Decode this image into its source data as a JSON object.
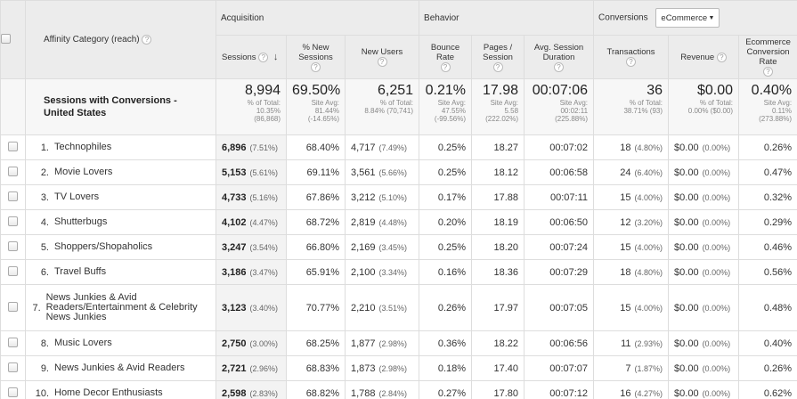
{
  "groups": {
    "acquisition": "Acquisition",
    "behavior": "Behavior",
    "conversions_label": "Conversions",
    "conversions_select": "eCommerce"
  },
  "columns": {
    "category": "Affinity Category (reach)",
    "sessions": "Sessions",
    "new_sessions": "% New Sessions",
    "new_users": "New Users",
    "bounce": "Bounce Rate",
    "pages": "Pages / Session",
    "duration": "Avg. Session Duration",
    "transactions": "Transactions",
    "revenue": "Revenue",
    "conv_rate": "Ecommerce Conversion Rate"
  },
  "totals": {
    "label": "Sessions with Conversions - United States",
    "sessions": {
      "value": "8,994",
      "l1": "% of Total:",
      "l2": "10.35%",
      "l3": "(86,868)"
    },
    "new_sessions": {
      "value": "69.50%",
      "l1": "Site Avg:",
      "l2": "81.44%",
      "l3": "(-14.65%)"
    },
    "new_users": {
      "value": "6,251",
      "l1": "% of Total:",
      "l2": "8.84% (70,741)",
      "l3": ""
    },
    "bounce": {
      "value": "0.21%",
      "l1": "Site Avg:",
      "l2": "47.55%",
      "l3": "(-99.56%)"
    },
    "pages": {
      "value": "17.98",
      "l1": "Site Avg:",
      "l2": "5.58",
      "l3": "(222.02%)"
    },
    "duration": {
      "value": "00:07:06",
      "l1": "Site Avg:",
      "l2": "00:02:11",
      "l3": "(225.88%)"
    },
    "transactions": {
      "value": "36",
      "l1": "% of Total:",
      "l2": "38.71% (93)",
      "l3": ""
    },
    "revenue": {
      "value": "$0.00",
      "l1": "% of Total:",
      "l2": "0.00% ($0.00)",
      "l3": ""
    },
    "conv_rate": {
      "value": "0.40%",
      "l1": "Site Avg:",
      "l2": "0.11%",
      "l3": "(273.88%)"
    }
  },
  "rows": [
    {
      "idx": "1.",
      "name": "Technophiles",
      "sessions": "6,896",
      "sessions_pct": "(7.51%)",
      "new_sessions": "68.40%",
      "new_users": "4,717",
      "new_users_pct": "(7.49%)",
      "bounce": "0.25%",
      "pages": "18.27",
      "duration": "00:07:02",
      "transactions": "18",
      "transactions_pct": "(4.80%)",
      "revenue": "$0.00",
      "revenue_pct": "(0.00%)",
      "conv_rate": "0.26%"
    },
    {
      "idx": "2.",
      "name": "Movie Lovers",
      "sessions": "5,153",
      "sessions_pct": "(5.61%)",
      "new_sessions": "69.11%",
      "new_users": "3,561",
      "new_users_pct": "(5.66%)",
      "bounce": "0.25%",
      "pages": "18.12",
      "duration": "00:06:58",
      "transactions": "24",
      "transactions_pct": "(6.40%)",
      "revenue": "$0.00",
      "revenue_pct": "(0.00%)",
      "conv_rate": "0.47%"
    },
    {
      "idx": "3.",
      "name": "TV Lovers",
      "sessions": "4,733",
      "sessions_pct": "(5.16%)",
      "new_sessions": "67.86%",
      "new_users": "3,212",
      "new_users_pct": "(5.10%)",
      "bounce": "0.17%",
      "pages": "17.88",
      "duration": "00:07:11",
      "transactions": "15",
      "transactions_pct": "(4.00%)",
      "revenue": "$0.00",
      "revenue_pct": "(0.00%)",
      "conv_rate": "0.32%"
    },
    {
      "idx": "4.",
      "name": "Shutterbugs",
      "sessions": "4,102",
      "sessions_pct": "(4.47%)",
      "new_sessions": "68.72%",
      "new_users": "2,819",
      "new_users_pct": "(4.48%)",
      "bounce": "0.20%",
      "pages": "18.19",
      "duration": "00:06:50",
      "transactions": "12",
      "transactions_pct": "(3.20%)",
      "revenue": "$0.00",
      "revenue_pct": "(0.00%)",
      "conv_rate": "0.29%"
    },
    {
      "idx": "5.",
      "name": "Shoppers/Shopaholics",
      "sessions": "3,247",
      "sessions_pct": "(3.54%)",
      "new_sessions": "66.80%",
      "new_users": "2,169",
      "new_users_pct": "(3.45%)",
      "bounce": "0.25%",
      "pages": "18.20",
      "duration": "00:07:24",
      "transactions": "15",
      "transactions_pct": "(4.00%)",
      "revenue": "$0.00",
      "revenue_pct": "(0.00%)",
      "conv_rate": "0.46%"
    },
    {
      "idx": "6.",
      "name": "Travel Buffs",
      "sessions": "3,186",
      "sessions_pct": "(3.47%)",
      "new_sessions": "65.91%",
      "new_users": "2,100",
      "new_users_pct": "(3.34%)",
      "bounce": "0.16%",
      "pages": "18.36",
      "duration": "00:07:29",
      "transactions": "18",
      "transactions_pct": "(4.80%)",
      "revenue": "$0.00",
      "revenue_pct": "(0.00%)",
      "conv_rate": "0.56%"
    },
    {
      "idx": "7.",
      "name": "News Junkies & Avid Readers/Entertainment & Celebrity News Junkies",
      "sessions": "3,123",
      "sessions_pct": "(3.40%)",
      "new_sessions": "70.77%",
      "new_users": "2,210",
      "new_users_pct": "(3.51%)",
      "bounce": "0.26%",
      "pages": "17.97",
      "duration": "00:07:05",
      "transactions": "15",
      "transactions_pct": "(4.00%)",
      "revenue": "$0.00",
      "revenue_pct": "(0.00%)",
      "conv_rate": "0.48%"
    },
    {
      "idx": "8.",
      "name": "Music Lovers",
      "sessions": "2,750",
      "sessions_pct": "(3.00%)",
      "new_sessions": "68.25%",
      "new_users": "1,877",
      "new_users_pct": "(2.98%)",
      "bounce": "0.36%",
      "pages": "18.22",
      "duration": "00:06:56",
      "transactions": "11",
      "transactions_pct": "(2.93%)",
      "revenue": "$0.00",
      "revenue_pct": "(0.00%)",
      "conv_rate": "0.40%"
    },
    {
      "idx": "9.",
      "name": "News Junkies & Avid Readers",
      "sessions": "2,721",
      "sessions_pct": "(2.96%)",
      "new_sessions": "68.83%",
      "new_users": "1,873",
      "new_users_pct": "(2.98%)",
      "bounce": "0.18%",
      "pages": "17.40",
      "duration": "00:07:07",
      "transactions": "7",
      "transactions_pct": "(1.87%)",
      "revenue": "$0.00",
      "revenue_pct": "(0.00%)",
      "conv_rate": "0.26%"
    },
    {
      "idx": "10.",
      "name": "Home Decor Enthusiasts",
      "sessions": "2,598",
      "sessions_pct": "(2.83%)",
      "new_sessions": "68.82%",
      "new_users": "1,788",
      "new_users_pct": "(2.84%)",
      "bounce": "0.27%",
      "pages": "17.80",
      "duration": "00:07:12",
      "transactions": "16",
      "transactions_pct": "(4.27%)",
      "revenue": "$0.00",
      "revenue_pct": "(0.00%)",
      "conv_rate": "0.62%"
    }
  ]
}
